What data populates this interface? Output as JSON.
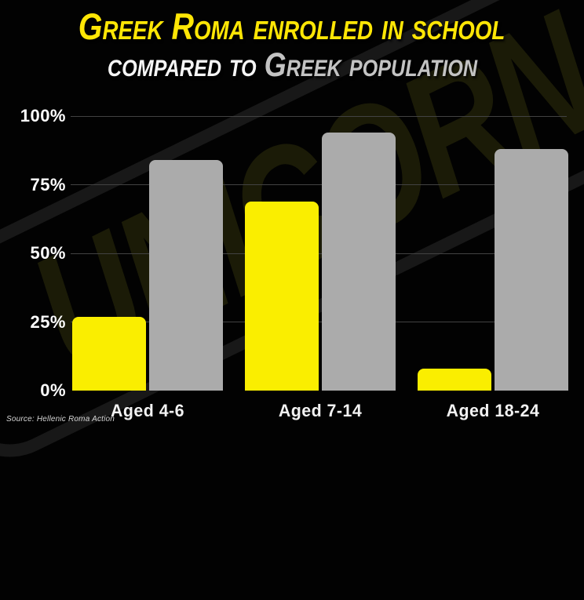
{
  "title": {
    "line1": "Greek Roma enrolled in school",
    "line2_white": "compared to ",
    "line2_silver": "Greek population"
  },
  "watermark": {
    "text": "UNICORN"
  },
  "colors": {
    "background": "#020202",
    "title_yellow": "#ffe605",
    "title_white": "#f5f5f5",
    "title_silver": "#c3c3c3",
    "bar_yellow": "#faee00",
    "bar_gray": "#ababab",
    "gridline": "#424242"
  },
  "chart_data": {
    "type": "bar",
    "title": "Greek Roma enrolled in school compared to Greek population",
    "categories": [
      "Aged 4-6",
      "Aged 7-14",
      "Aged 18-24"
    ],
    "series": [
      {
        "name": "Greek Roma enrolled in school",
        "color": "#faee00",
        "values": [
          27,
          69,
          8
        ]
      },
      {
        "name": "Greek population",
        "color": "#ababab",
        "values": [
          84,
          94,
          88
        ]
      }
    ],
    "xlabel": "",
    "ylabel": "",
    "ylim": [
      0,
      100
    ],
    "yticks": [
      "0%",
      "25%",
      "50%",
      "75%",
      "100%"
    ],
    "grid": true,
    "legend_position": "none",
    "source": "Source: Hellenic Roma Action"
  }
}
